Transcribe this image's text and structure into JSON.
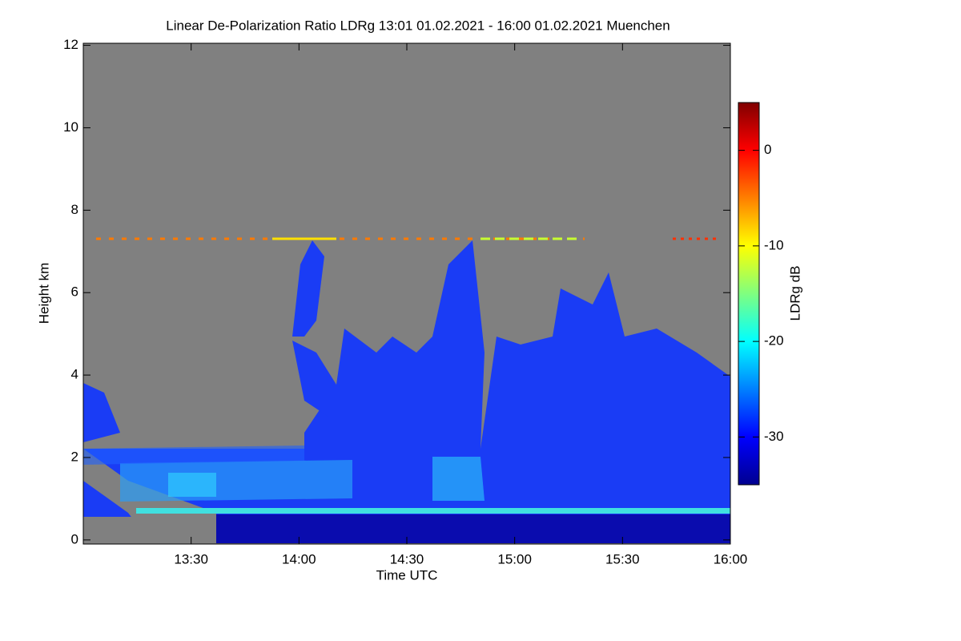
{
  "chart_data": {
    "type": "heatmap",
    "title": "Linear De-Polarization Ratio LDRg   13:01 01.02.2021 - 16:00 01.02.2021 Muenchen",
    "x_label": "Time UTC",
    "y_label": "Height km",
    "xlim": [
      13.0,
      16.0
    ],
    "xticks": [
      {
        "value": 13.5,
        "label": "13:30"
      },
      {
        "value": 14,
        "label": "14:00"
      },
      {
        "value": 14.5,
        "label": "14:30"
      },
      {
        "value": 15,
        "label": "15:00"
      },
      {
        "value": 15.5,
        "label": "15:30"
      },
      {
        "value": 16,
        "label": "16:00"
      }
    ],
    "ylim": [
      -0.1,
      12.05
    ],
    "yticks": [
      0,
      2,
      4,
      6,
      8,
      10,
      12
    ],
    "background_color": "#808080",
    "colorbar": {
      "label": "LDRg dB",
      "lim": [
        -35,
        5
      ],
      "ticks": [
        0,
        -10,
        -20,
        -30
      ],
      "colormap": "jet"
    }
  }
}
